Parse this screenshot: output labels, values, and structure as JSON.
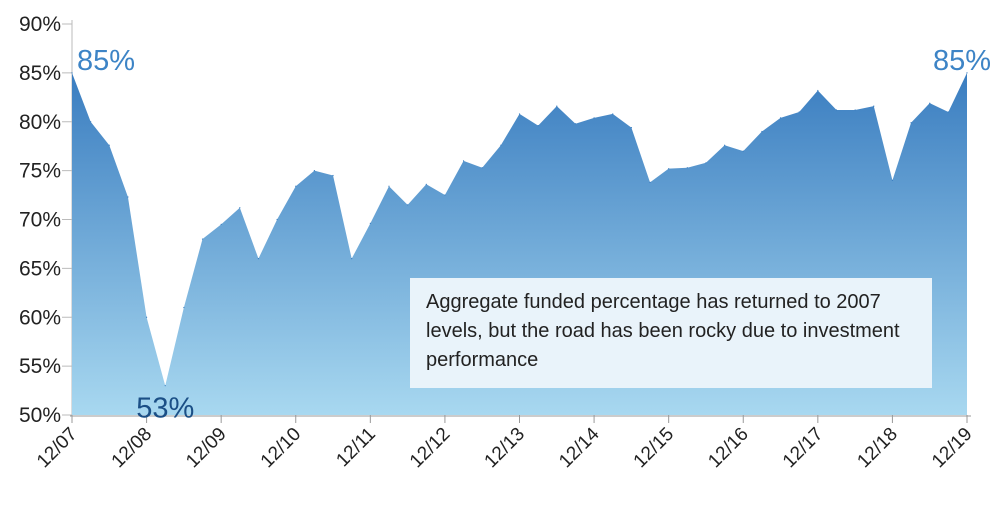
{
  "chart_data": {
    "type": "area",
    "title": "",
    "xlabel": "",
    "ylabel": "",
    "ylim": [
      50,
      90
    ],
    "yticks": [
      50,
      55,
      60,
      65,
      70,
      75,
      80,
      85,
      90
    ],
    "ytick_labels": [
      "50%",
      "55%",
      "60%",
      "65%",
      "70%",
      "75%",
      "80%",
      "85%",
      "90%"
    ],
    "xticks": [
      {
        "pos": 0,
        "label": "12/07"
      },
      {
        "pos": 4,
        "label": "12/08"
      },
      {
        "pos": 8,
        "label": "12/09"
      },
      {
        "pos": 12,
        "label": "12/10"
      },
      {
        "pos": 16,
        "label": "12/11"
      },
      {
        "pos": 20,
        "label": "12/12"
      },
      {
        "pos": 24,
        "label": "12/13"
      },
      {
        "pos": 28,
        "label": "12/14"
      },
      {
        "pos": 32,
        "label": "12/15"
      },
      {
        "pos": 36,
        "label": "12/16"
      },
      {
        "pos": 40,
        "label": "12/17"
      },
      {
        "pos": 44,
        "label": "12/18"
      },
      {
        "pos": 48,
        "label": "12/19"
      }
    ],
    "values": [
      85,
      80,
      77.6,
      72.3,
      60,
      53,
      61,
      68,
      69.5,
      71.2,
      66,
      70,
      73.4,
      75,
      74.5,
      66,
      69.6,
      73.4,
      71.5,
      73.6,
      72.5,
      76,
      75.3,
      77.6,
      80.8,
      79.6,
      81.6,
      79.8,
      80.4,
      80.8,
      79.4,
      73.8,
      75.2,
      75.3,
      75.8,
      77.6,
      77,
      79,
      80.4,
      81,
      83.2,
      81.2,
      81.2,
      81.6,
      74,
      79.9,
      81.9,
      81,
      85
    ],
    "annotations": [
      {
        "text": "85%",
        "at": 0,
        "style": "peak"
      },
      {
        "text": "53%",
        "at": 5,
        "style": "trough"
      },
      {
        "text": "85%",
        "at": 48,
        "style": "peak"
      }
    ],
    "note": "Aggregate funded percentage has returned to 2007 levels, but the road has been rocky due to investment performance",
    "colors": {
      "area_top": "#3a7dc0",
      "area_bottom": "#a8d8f0",
      "peak_label": "#3d84c6",
      "trough_label": "#1b4f86",
      "note_bg": "#e9f3fa"
    },
    "grid": false
  }
}
